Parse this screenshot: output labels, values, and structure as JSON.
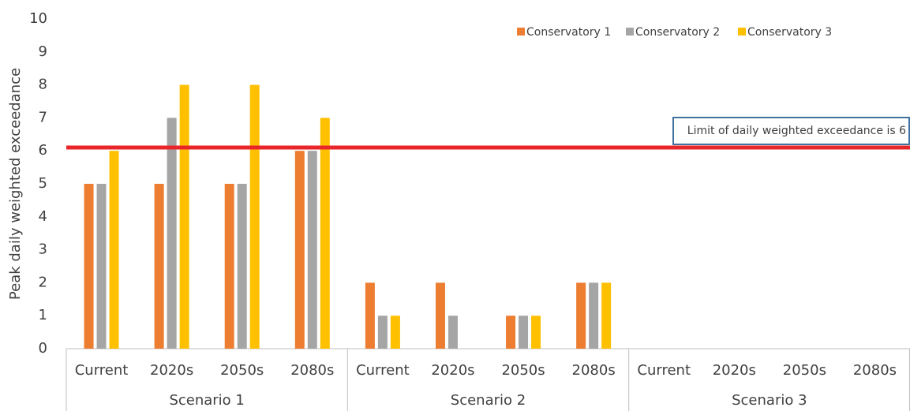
{
  "chart_data": {
    "type": "bar",
    "y_label": "Peak daily weighted exceedance",
    "categories": [
      "Current",
      "2020s",
      "2050s",
      "2080s",
      "Current",
      "2020s",
      "2050s",
      "2080s",
      "Current",
      "2020s",
      "2050s",
      "2080s"
    ],
    "groups": [
      "Scenario 1",
      "Scenario 2",
      "Scenario 3"
    ],
    "series": [
      {
        "name": "Conservatory 1",
        "color": "#ed7d31",
        "values": [
          5,
          5,
          5,
          6,
          2,
          2,
          1,
          2,
          0,
          0,
          0,
          0
        ]
      },
      {
        "name": "Conservatory 2",
        "color": "#a5a5a5",
        "values": [
          5,
          7,
          5,
          6,
          1,
          1,
          1,
          2,
          0,
          0,
          0,
          0
        ]
      },
      {
        "name": "Conservatory 3",
        "color": "#ffc000",
        "values": [
          6,
          8,
          8,
          7,
          1,
          0,
          1,
          2,
          0,
          0,
          0,
          0
        ]
      }
    ],
    "ylim": [
      0,
      10
    ],
    "yticks": [
      0,
      1,
      2,
      3,
      4,
      5,
      6,
      7,
      8,
      9,
      10
    ],
    "grid": false,
    "legend": "top-right",
    "threshold": {
      "value": 6.1,
      "label": "Limit of daily weighted exceedance is 6",
      "color": "#e8262a"
    }
  }
}
